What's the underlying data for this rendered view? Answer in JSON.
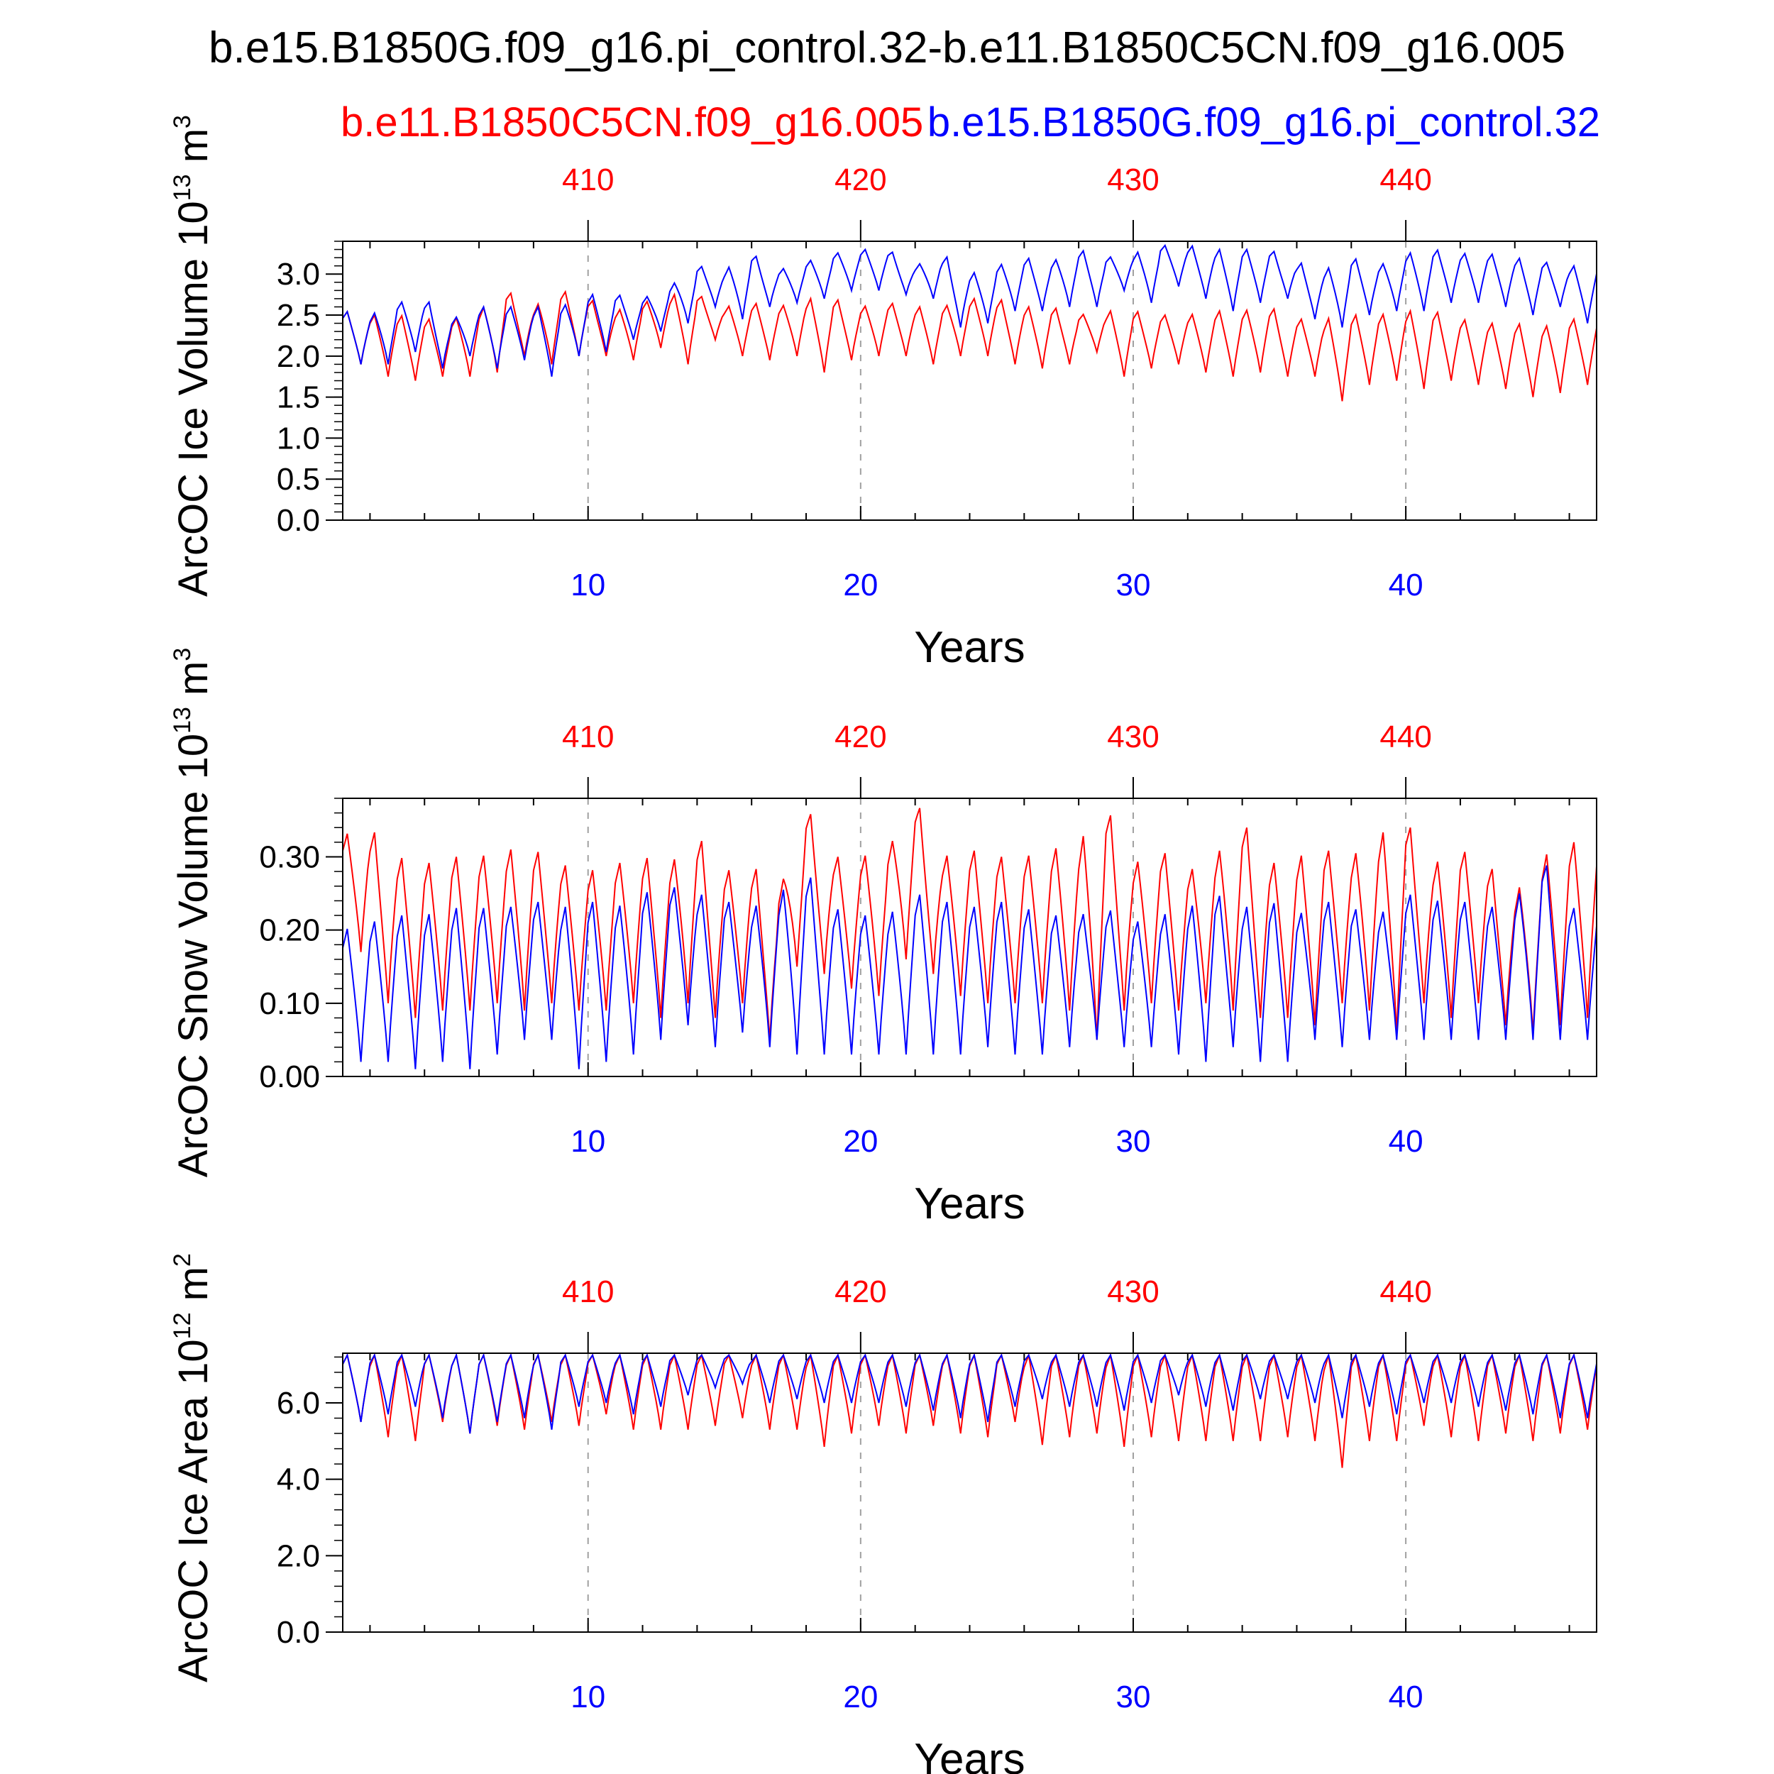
{
  "main_title": "b.e15.B1850G.f09_g16.pi_control.32-b.e11.B1850C5CN.f09_g16.005",
  "legend": {
    "red_case": "b.e11.B1850C5CN.f09_g16.005",
    "blue_case": "b.e15.B1850G.f09_g16.pi_control.32"
  },
  "colors": {
    "red_case": "#ff0000",
    "blue_case": "#0000ff",
    "axis": "#000000",
    "grid": "#a0a0a0",
    "text": "#000000"
  },
  "chart_data": [
    {
      "type": "line",
      "name": "ice-volume",
      "ylabel": "ArcOC Ice Volume 10",
      "ylabel_exp": "13",
      "ylabel_unit": " m",
      "ylabel_unit_exp": "3",
      "xlabel": "Years",
      "xlim": [
        1,
        47
      ],
      "ylim": [
        0.0,
        3.4
      ],
      "yticks": [
        0.0,
        0.5,
        1.0,
        1.5,
        2.0,
        2.5,
        3.0
      ],
      "ytick_labels": [
        "0.0",
        "0.5",
        "1.0",
        "1.5",
        "2.0",
        "2.5",
        "3.0"
      ],
      "ytick_minor_step": 0.1,
      "xticks_bottom": [
        10,
        20,
        30,
        40
      ],
      "xtick_labels_bottom": [
        "10",
        "20",
        "30",
        "40"
      ],
      "xticks_top": [
        10,
        20,
        30,
        40
      ],
      "xtick_labels_top": [
        "410",
        "420",
        "430",
        "440"
      ],
      "grid": "vertical dashed at major x ticks",
      "series": [
        {
          "name": "b.e11.B1850C5CN.f09_g16.005",
          "color": "red",
          "annual_max": [
            2.55,
            2.5,
            2.5,
            2.45,
            2.45,
            2.55,
            2.8,
            2.6,
            2.8,
            2.7,
            2.55,
            2.65,
            2.75,
            2.75,
            2.6,
            2.65,
            2.6,
            2.7,
            2.7,
            2.6,
            2.65,
            2.6,
            2.6,
            2.7,
            2.7,
            2.6,
            2.6,
            2.5,
            2.55,
            2.55,
            2.5,
            2.5,
            2.55,
            2.55,
            2.6,
            2.45,
            2.45,
            2.5,
            2.5,
            2.55,
            2.55,
            2.45,
            2.4,
            2.4,
            2.35,
            2.45
          ],
          "annual_min": [
            1.9,
            1.75,
            1.7,
            1.75,
            1.75,
            1.8,
            2.0,
            1.9,
            2.0,
            2.0,
            1.95,
            2.1,
            1.9,
            2.2,
            2.0,
            1.95,
            2.0,
            1.8,
            1.95,
            2.0,
            2.0,
            1.9,
            2.0,
            2.0,
            1.9,
            1.85,
            1.9,
            2.05,
            1.75,
            1.85,
            1.9,
            1.8,
            1.75,
            1.8,
            1.75,
            1.75,
            1.45,
            1.65,
            1.7,
            1.6,
            1.7,
            1.65,
            1.6,
            1.5,
            1.55,
            1.65
          ]
        },
        {
          "name": "b.e15.B1850G.f09_g16.pi_control.32",
          "color": "blue",
          "annual_max": [
            2.55,
            2.5,
            2.65,
            2.7,
            2.45,
            2.6,
            2.6,
            2.6,
            2.6,
            2.75,
            2.75,
            2.7,
            2.85,
            3.1,
            3.05,
            3.25,
            3.05,
            3.15,
            3.25,
            3.3,
            3.3,
            3.1,
            3.25,
            3.0,
            3.1,
            3.2,
            3.15,
            3.3,
            3.2,
            3.25,
            3.35,
            3.35,
            3.3,
            3.3,
            3.3,
            3.15,
            3.05,
            3.2,
            3.1,
            3.25,
            3.3,
            3.25,
            3.25,
            3.2,
            3.15,
            3.1
          ],
          "annual_min": [
            1.9,
            1.9,
            2.05,
            1.85,
            2.0,
            1.85,
            1.95,
            1.75,
            2.0,
            2.05,
            2.2,
            2.3,
            2.4,
            2.6,
            2.45,
            2.6,
            2.65,
            2.7,
            2.8,
            2.8,
            2.75,
            2.7,
            2.35,
            2.4,
            2.55,
            2.55,
            2.6,
            2.6,
            2.8,
            2.65,
            2.85,
            2.7,
            2.55,
            2.65,
            2.7,
            2.45,
            2.35,
            2.5,
            2.55,
            2.55,
            2.65,
            2.65,
            2.6,
            2.5,
            2.6,
            2.4
          ]
        }
      ]
    },
    {
      "type": "line",
      "name": "snow-volume",
      "ylabel": "ArcOC Snow Volume 10",
      "ylabel_exp": "13",
      "ylabel_unit": " m",
      "ylabel_unit_exp": "3",
      "xlabel": "Years",
      "xlim": [
        1,
        47
      ],
      "ylim": [
        0.0,
        0.38
      ],
      "yticks": [
        0.0,
        0.1,
        0.2,
        0.3
      ],
      "ytick_labels": [
        "0.00",
        "0.10",
        "0.20",
        "0.30"
      ],
      "ytick_minor_step": 0.02,
      "xticks_bottom": [
        10,
        20,
        30,
        40
      ],
      "xtick_labels_bottom": [
        "10",
        "20",
        "30",
        "40"
      ],
      "xticks_top": [
        10,
        20,
        30,
        40
      ],
      "xtick_labels_top": [
        "410",
        "420",
        "430",
        "440"
      ],
      "grid": "vertical dashed at major x ticks",
      "series": [
        {
          "name": "b.e11.B1850C5CN.f09_g16.005",
          "color": "red",
          "annual_max": [
            0.33,
            0.34,
            0.3,
            0.29,
            0.3,
            0.3,
            0.31,
            0.31,
            0.29,
            0.28,
            0.29,
            0.3,
            0.29,
            0.33,
            0.28,
            0.29,
            0.25,
            0.37,
            0.3,
            0.3,
            0.31,
            0.38,
            0.3,
            0.31,
            0.3,
            0.3,
            0.31,
            0.32,
            0.37,
            0.29,
            0.31,
            0.28,
            0.3,
            0.35,
            0.29,
            0.3,
            0.31,
            0.3,
            0.33,
            0.35,
            0.29,
            0.31,
            0.29,
            0.25,
            0.3,
            0.32
          ],
          "annual_min": [
            0.17,
            0.1,
            0.08,
            0.09,
            0.09,
            0.1,
            0.09,
            0.1,
            0.09,
            0.09,
            0.1,
            0.08,
            0.1,
            0.08,
            0.1,
            0.05,
            0.15,
            0.14,
            0.12,
            0.11,
            0.16,
            0.14,
            0.11,
            0.1,
            0.1,
            0.1,
            0.09,
            0.05,
            0.09,
            0.1,
            0.09,
            0.1,
            0.09,
            0.08,
            0.08,
            0.07,
            0.1,
            0.09,
            0.06,
            0.1,
            0.08,
            0.1,
            0.07,
            0.06,
            0.07,
            0.08
          ]
        },
        {
          "name": "b.e15.B1850G.f09_g16.pi_control.32",
          "color": "blue",
          "annual_max": [
            0.2,
            0.21,
            0.22,
            0.22,
            0.23,
            0.23,
            0.23,
            0.24,
            0.23,
            0.24,
            0.23,
            0.25,
            0.26,
            0.25,
            0.24,
            0.23,
            0.25,
            0.28,
            0.23,
            0.22,
            0.22,
            0.25,
            0.24,
            0.23,
            0.24,
            0.23,
            0.22,
            0.22,
            0.23,
            0.21,
            0.22,
            0.23,
            0.25,
            0.23,
            0.24,
            0.22,
            0.24,
            0.23,
            0.22,
            0.25,
            0.24,
            0.24,
            0.23,
            0.24,
            0.3,
            0.23
          ],
          "annual_min": [
            0.02,
            0.02,
            0.01,
            0.02,
            0.01,
            0.03,
            0.05,
            0.05,
            0.01,
            0.02,
            0.03,
            0.05,
            0.07,
            0.04,
            0.06,
            0.04,
            0.03,
            0.03,
            0.03,
            0.03,
            0.03,
            0.03,
            0.03,
            0.04,
            0.03,
            0.03,
            0.04,
            0.05,
            0.04,
            0.04,
            0.03,
            0.02,
            0.04,
            0.02,
            0.02,
            0.05,
            0.04,
            0.05,
            0.05,
            0.05,
            0.05,
            0.05,
            0.05,
            0.05,
            0.05,
            0.05
          ]
        }
      ]
    },
    {
      "type": "line",
      "name": "ice-area",
      "ylabel": "ArcOC Ice Area 10",
      "ylabel_exp": "12",
      "ylabel_unit": " m",
      "ylabel_unit_exp": "2",
      "xlabel": "Years",
      "xlim": [
        1,
        47
      ],
      "ylim": [
        0.0,
        7.3
      ],
      "yticks": [
        0.0,
        2.0,
        4.0,
        6.0
      ],
      "ytick_labels": [
        "0.0",
        "2.0",
        "4.0",
        "6.0"
      ],
      "ytick_minor_step": 0.4,
      "xticks_bottom": [
        10,
        20,
        30,
        40
      ],
      "xtick_labels_bottom": [
        "10",
        "20",
        "30",
        "40"
      ],
      "xticks_top": [
        10,
        20,
        30,
        40
      ],
      "xtick_labels_top": [
        "410",
        "420",
        "430",
        "440"
      ],
      "grid": "vertical dashed at major x ticks",
      "series": [
        {
          "name": "b.e11.B1850C5CN.f09_g16.005",
          "color": "red",
          "annual_max": [
            7.25,
            7.25,
            7.25,
            7.25,
            7.25,
            7.25,
            7.25,
            7.25,
            7.25,
            7.25,
            7.25,
            7.25,
            7.25,
            7.25,
            7.25,
            7.25,
            7.25,
            7.25,
            7.25,
            7.25,
            7.25,
            7.25,
            7.25,
            7.25,
            7.25,
            7.25,
            7.25,
            7.25,
            7.25,
            7.25,
            7.25,
            7.25,
            7.25,
            7.25,
            7.25,
            7.25,
            7.25,
            7.25,
            7.25,
            7.25,
            7.25,
            7.25,
            7.25,
            7.25,
            7.25,
            7.25
          ],
          "annual_min": [
            5.5,
            5.1,
            5.0,
            5.5,
            5.2,
            5.4,
            5.3,
            5.5,
            5.4,
            5.7,
            5.3,
            5.3,
            5.3,
            5.4,
            5.6,
            5.3,
            5.3,
            4.85,
            5.2,
            5.4,
            5.2,
            5.4,
            5.2,
            5.1,
            5.5,
            4.9,
            5.1,
            5.2,
            4.85,
            5.1,
            5.0,
            5.0,
            5.0,
            5.0,
            5.1,
            5.0,
            4.3,
            5.0,
            5.0,
            5.4,
            5.1,
            5.0,
            5.2,
            5.0,
            5.2,
            5.3
          ]
        },
        {
          "name": "b.e15.B1850G.f09_g16.pi_control.32",
          "color": "blue",
          "annual_max": [
            7.25,
            7.25,
            7.25,
            7.25,
            7.25,
            7.25,
            7.25,
            7.25,
            7.25,
            7.25,
            7.25,
            7.25,
            7.25,
            7.25,
            7.25,
            7.25,
            7.25,
            7.25,
            7.25,
            7.25,
            7.25,
            7.25,
            7.25,
            7.25,
            7.25,
            7.25,
            7.25,
            7.25,
            7.25,
            7.25,
            7.25,
            7.25,
            7.25,
            7.25,
            7.25,
            7.25,
            7.25,
            7.25,
            7.25,
            7.25,
            7.25,
            7.25,
            7.25,
            7.25,
            7.25,
            7.25
          ],
          "annual_min": [
            5.5,
            5.7,
            5.9,
            5.6,
            5.2,
            5.5,
            5.6,
            5.3,
            5.9,
            6.0,
            5.7,
            5.9,
            6.2,
            6.4,
            6.5,
            6.0,
            6.1,
            6.0,
            6.0,
            6.0,
            5.9,
            5.8,
            5.6,
            5.5,
            5.9,
            6.1,
            5.9,
            5.9,
            5.8,
            6.0,
            6.2,
            5.9,
            5.8,
            6.1,
            6.1,
            6.0,
            5.6,
            5.9,
            5.7,
            6.0,
            6.0,
            5.9,
            5.8,
            5.7,
            5.6,
            5.6
          ]
        }
      ]
    }
  ]
}
